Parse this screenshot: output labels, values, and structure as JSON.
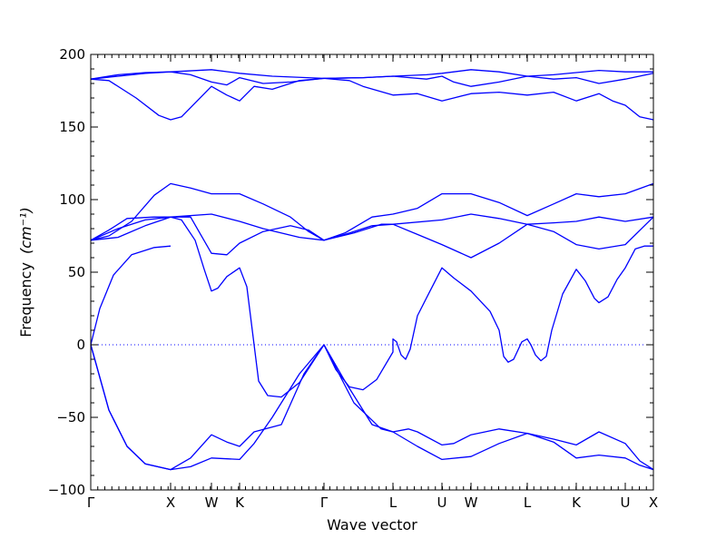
{
  "chart_data": {
    "type": "line",
    "title": "",
    "xlabel": "Wave vector",
    "ylabel": "Frequency",
    "ylabel_unit": "(cm⁻¹)",
    "ylim": [
      -100,
      200
    ],
    "yticks": [
      200,
      150,
      100,
      50,
      0,
      -50,
      -100
    ],
    "ytick_labels": [
      "200",
      "150",
      "100",
      "50",
      "0",
      "−50",
      "−100"
    ],
    "xlim": [
      0,
      620
    ],
    "xticks": [
      0,
      88,
      133,
      164,
      257,
      333,
      387,
      419,
      481,
      535,
      589,
      620
    ],
    "xtick_labels": [
      "Γ",
      "X",
      "W",
      "K",
      "Γ",
      "L",
      "U",
      "W",
      "L",
      "K",
      "U",
      "X"
    ],
    "zero_line": true,
    "grid": false,
    "line_color": "#0000ff",
    "series": [
      {
        "values": [
          [
            0,
            183
          ],
          [
            30,
            186
          ],
          [
            60,
            187.5
          ],
          [
            88,
            188
          ],
          [
            133,
            189.5
          ],
          [
            164,
            187
          ],
          [
            200,
            185
          ],
          [
            257,
            183.5
          ],
          [
            300,
            184
          ],
          [
            333,
            185
          ],
          [
            370,
            186
          ],
          [
            387,
            187
          ],
          [
            419,
            189.5
          ],
          [
            450,
            188
          ],
          [
            481,
            185
          ],
          [
            510,
            186
          ],
          [
            535,
            187.5
          ],
          [
            560,
            189
          ],
          [
            589,
            188
          ],
          [
            620,
            188
          ]
        ]
      },
      {
        "values": [
          [
            0,
            183
          ],
          [
            20,
            182
          ],
          [
            50,
            170
          ],
          [
            75,
            158
          ],
          [
            88,
            155
          ],
          [
            100,
            157
          ],
          [
            133,
            178
          ],
          [
            150,
            172
          ],
          [
            164,
            168
          ],
          [
            180,
            178
          ],
          [
            200,
            176
          ],
          [
            230,
            182
          ],
          [
            257,
            183.5
          ],
          [
            285,
            182
          ],
          [
            300,
            178
          ],
          [
            333,
            172
          ],
          [
            360,
            173
          ],
          [
            387,
            168
          ],
          [
            400,
            170
          ],
          [
            419,
            173
          ],
          [
            450,
            174
          ],
          [
            481,
            172
          ],
          [
            510,
            174
          ],
          [
            535,
            168
          ],
          [
            560,
            173
          ],
          [
            575,
            168
          ],
          [
            589,
            165
          ],
          [
            605,
            157
          ],
          [
            620,
            155
          ]
        ]
      },
      {
        "values": [
          [
            0,
            183
          ],
          [
            60,
            187
          ],
          [
            88,
            188
          ],
          [
            110,
            186
          ],
          [
            133,
            181
          ],
          [
            150,
            179
          ],
          [
            164,
            184
          ],
          [
            190,
            180
          ],
          [
            220,
            181
          ],
          [
            257,
            183.5
          ],
          [
            300,
            184
          ],
          [
            333,
            185
          ],
          [
            370,
            183
          ],
          [
            387,
            185
          ],
          [
            400,
            181
          ],
          [
            419,
            178
          ],
          [
            450,
            181
          ],
          [
            481,
            185
          ],
          [
            510,
            183
          ],
          [
            535,
            184
          ],
          [
            560,
            180
          ],
          [
            589,
            183
          ],
          [
            620,
            187
          ]
        ]
      },
      {
        "values": [
          [
            0,
            72
          ],
          [
            20,
            75
          ],
          [
            45,
            85
          ],
          [
            70,
            103
          ],
          [
            88,
            111
          ],
          [
            110,
            108
          ],
          [
            133,
            104
          ],
          [
            164,
            104
          ],
          [
            190,
            97
          ],
          [
            220,
            88
          ],
          [
            240,
            78
          ],
          [
            257,
            72
          ],
          [
            280,
            77
          ],
          [
            310,
            88
          ],
          [
            333,
            90
          ],
          [
            360,
            94
          ],
          [
            387,
            104
          ],
          [
            419,
            104
          ],
          [
            450,
            98
          ],
          [
            481,
            89
          ],
          [
            510,
            97
          ],
          [
            535,
            104
          ],
          [
            560,
            102
          ],
          [
            589,
            104
          ],
          [
            620,
            111
          ]
        ]
      },
      {
        "values": [
          [
            0,
            72
          ],
          [
            30,
            80
          ],
          [
            60,
            86
          ],
          [
            88,
            88
          ],
          [
            133,
            90
          ],
          [
            164,
            85
          ],
          [
            190,
            80
          ],
          [
            230,
            74
          ],
          [
            257,
            72
          ],
          [
            290,
            77
          ],
          [
            320,
            83
          ],
          [
            333,
            83
          ],
          [
            387,
            86
          ],
          [
            419,
            90
          ],
          [
            450,
            87
          ],
          [
            481,
            83
          ],
          [
            510,
            84
          ],
          [
            535,
            85
          ],
          [
            560,
            88
          ],
          [
            589,
            85
          ],
          [
            620,
            88
          ]
        ]
      },
      {
        "values": [
          [
            0,
            72
          ],
          [
            30,
            74
          ],
          [
            60,
            82
          ],
          [
            88,
            88
          ],
          [
            110,
            88
          ],
          [
            133,
            63
          ],
          [
            150,
            62
          ],
          [
            164,
            70
          ],
          [
            190,
            78
          ],
          [
            220,
            82
          ],
          [
            240,
            79
          ],
          [
            257,
            72
          ],
          [
            280,
            76
          ],
          [
            310,
            82
          ],
          [
            333,
            83
          ],
          [
            360,
            76
          ],
          [
            387,
            69
          ],
          [
            419,
            60
          ],
          [
            450,
            70
          ],
          [
            481,
            83
          ],
          [
            510,
            78
          ],
          [
            535,
            69
          ],
          [
            560,
            66
          ],
          [
            589,
            69
          ],
          [
            620,
            88
          ]
        ]
      },
      {
        "values": [
          [
            0,
            72
          ],
          [
            20,
            79
          ],
          [
            40,
            87
          ],
          [
            70,
            88
          ],
          [
            88,
            88
          ],
          [
            100,
            86
          ],
          [
            115,
            72
          ],
          [
            125,
            52
          ],
          [
            133,
            37
          ],
          [
            140,
            39
          ],
          [
            150,
            47
          ],
          [
            164,
            53
          ],
          [
            172,
            40
          ],
          [
            180,
            0
          ],
          [
            185,
            -25
          ],
          [
            195,
            -35
          ],
          [
            210,
            -36
          ],
          [
            230,
            -26
          ],
          [
            257,
            0
          ],
          [
            270,
            -17
          ],
          [
            285,
            -29
          ],
          [
            300,
            -31
          ],
          [
            315,
            -24
          ],
          [
            333,
            -5
          ],
          [
            333,
            4
          ],
          [
            337,
            2
          ],
          [
            342,
            -7
          ],
          [
            347,
            -10
          ],
          [
            352,
            -3
          ],
          [
            360,
            20
          ],
          [
            373,
            36
          ],
          [
            387,
            53
          ],
          [
            400,
            46
          ],
          [
            419,
            37
          ],
          [
            440,
            23
          ],
          [
            450,
            10
          ],
          [
            455,
            -8
          ],
          [
            460,
            -12
          ],
          [
            466,
            -10
          ],
          [
            475,
            2
          ],
          [
            481,
            4
          ],
          [
            485,
            0
          ],
          [
            490,
            -7
          ],
          [
            496,
            -11
          ],
          [
            502,
            -8
          ],
          [
            508,
            10
          ],
          [
            520,
            35
          ],
          [
            535,
            52
          ],
          [
            545,
            44
          ],
          [
            555,
            32
          ],
          [
            560,
            29
          ],
          [
            570,
            33
          ],
          [
            580,
            45
          ],
          [
            589,
            53
          ],
          [
            600,
            66
          ],
          [
            610,
            68
          ],
          [
            620,
            68
          ]
        ]
      },
      {
        "values": [
          [
            0,
            0
          ],
          [
            10,
            25
          ],
          [
            25,
            48
          ],
          [
            45,
            62
          ],
          [
            70,
            67
          ],
          [
            88,
            68
          ]
        ]
      },
      {
        "values": [
          [
            0,
            0
          ],
          [
            20,
            -45
          ],
          [
            40,
            -70
          ],
          [
            60,
            -82
          ],
          [
            88,
            -86
          ],
          [
            110,
            -84
          ],
          [
            133,
            -78
          ],
          [
            164,
            -79
          ],
          [
            180,
            -68
          ],
          [
            200,
            -50
          ],
          [
            230,
            -20
          ],
          [
            257,
            0
          ],
          [
            280,
            -25
          ],
          [
            310,
            -55
          ],
          [
            333,
            -60
          ],
          [
            360,
            -70
          ],
          [
            387,
            -79
          ],
          [
            419,
            -77
          ],
          [
            450,
            -68
          ],
          [
            481,
            -61
          ],
          [
            510,
            -67
          ],
          [
            535,
            -78
          ],
          [
            560,
            -76
          ],
          [
            589,
            -78
          ],
          [
            605,
            -83
          ],
          [
            620,
            -86
          ]
        ]
      },
      {
        "values": [
          [
            0,
            0
          ],
          [
            20,
            -45
          ],
          [
            40,
            -70
          ],
          [
            60,
            -82
          ],
          [
            88,
            -86
          ],
          [
            110,
            -78
          ],
          [
            133,
            -62
          ],
          [
            150,
            -67
          ],
          [
            164,
            -70
          ],
          [
            180,
            -60
          ],
          [
            210,
            -55
          ],
          [
            235,
            -20
          ],
          [
            257,
            0
          ],
          [
            290,
            -40
          ],
          [
            320,
            -58
          ],
          [
            333,
            -60
          ],
          [
            350,
            -58
          ],
          [
            360,
            -60
          ],
          [
            387,
            -69
          ],
          [
            400,
            -68
          ],
          [
            419,
            -62
          ],
          [
            450,
            -58
          ],
          [
            481,
            -61
          ],
          [
            510,
            -65
          ],
          [
            535,
            -69
          ],
          [
            560,
            -60
          ],
          [
            589,
            -68
          ],
          [
            605,
            -80
          ],
          [
            620,
            -86
          ]
        ]
      }
    ]
  }
}
